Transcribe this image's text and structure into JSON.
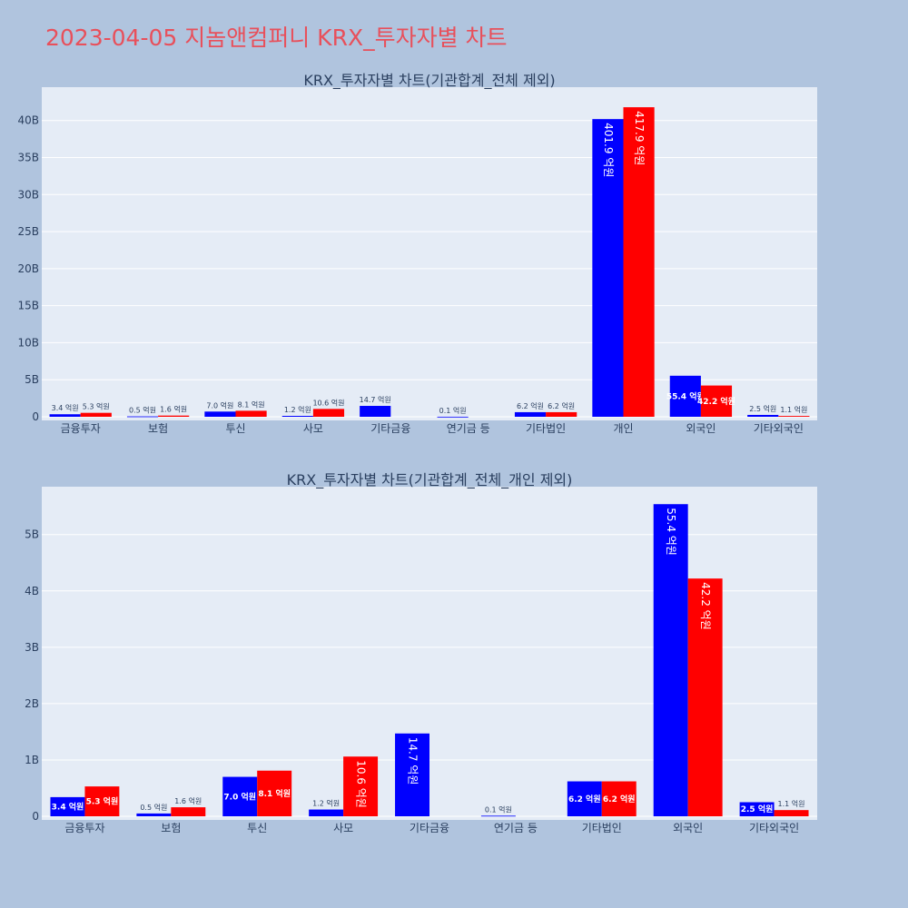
{
  "title": "2023-04-05 지놈앤컴퍼니 KRX_투자자별 차트",
  "colors": {
    "background": "#b0c4de",
    "plot_bg": "#e5ecf6",
    "title": "#e8505b",
    "series_a": "#0000ff",
    "series_b": "#ff0000"
  },
  "chart_data": [
    {
      "type": "bar",
      "title": "KRX_투자자별 차트(기관합계_전체 제외)",
      "categories": [
        "금융투자",
        "보험",
        "투신",
        "사모",
        "기타금융",
        "연기금 등",
        "기타법인",
        "개인",
        "외국인",
        "기타외국인"
      ],
      "ylim": [
        0,
        44.5
      ],
      "yticks": [
        "0",
        "5B",
        "10B",
        "15B",
        "20B",
        "25B",
        "30B",
        "35B",
        "40B"
      ],
      "grid": true,
      "series": [
        {
          "values": [
            0.34,
            0.05,
            0.7,
            0.12,
            1.47,
            0.01,
            0.62,
            40.19,
            5.54,
            0.25
          ],
          "labels": [
            "3.4 억원",
            "0.5 억원",
            "7.0 억원",
            "1.2 억원",
            "14.7 억원",
            "0.1 억원",
            "6.2 억원",
            "401.9 억원",
            "55.4 억원",
            "2.5 억원"
          ]
        },
        {
          "values": [
            0.53,
            0.16,
            0.81,
            1.06,
            0,
            0,
            0.62,
            41.79,
            4.22,
            0.11
          ],
          "labels": [
            "5.3 억원",
            "1.6 억원",
            "8.1 억원",
            "10.6 억원",
            "",
            "",
            "6.2 억원",
            "417.9 억원",
            "42.2 억원",
            "1.1 억원"
          ]
        }
      ]
    },
    {
      "type": "bar",
      "title": "KRX_투자자별 차트(기관합계_전체_개인 제외)",
      "categories": [
        "금융투자",
        "보험",
        "투신",
        "사모",
        "기타금융",
        "연기금 등",
        "기타법인",
        "외국인",
        "기타외국인"
      ],
      "ylim": [
        0,
        5.85
      ],
      "yticks": [
        "0",
        "1B",
        "2B",
        "3B",
        "4B",
        "5B"
      ],
      "grid": true,
      "series": [
        {
          "values": [
            0.34,
            0.05,
            0.7,
            0.12,
            1.47,
            0.01,
            0.62,
            5.54,
            0.25
          ],
          "labels": [
            "3.4 억원",
            "0.5 억원",
            "7.0 억원",
            "1.2 억원",
            "14.7 억원",
            "0.1 억원",
            "6.2 억원",
            "55.4 억원",
            "2.5 억원"
          ]
        },
        {
          "values": [
            0.53,
            0.16,
            0.81,
            1.06,
            0,
            0,
            0.62,
            4.22,
            0.11
          ],
          "labels": [
            "5.3 억원",
            "1.6 억원",
            "8.1 억원",
            "10.6 억원",
            "",
            "",
            "6.2 억원",
            "42.2 억원",
            "1.1 억원"
          ]
        }
      ]
    }
  ]
}
